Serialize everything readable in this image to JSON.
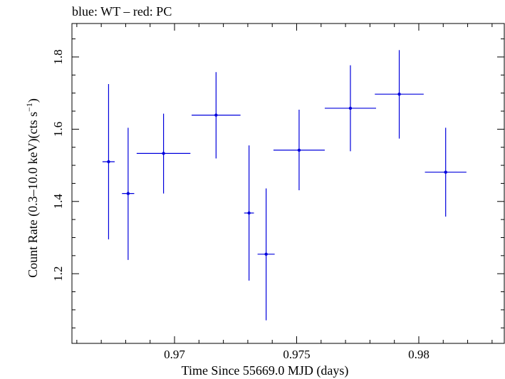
{
  "chart_data": {
    "type": "scatter",
    "title": "blue: WT – red: PC",
    "xlabel": "Time Since 55669.0 MJD (days)",
    "ylabel_main": "Count Rate (0.3–10.0 keV)(cts s",
    "ylabel_sup": "−1",
    "ylabel_end": ")",
    "xlim": [
      0.9658,
      0.9835
    ],
    "ylim": [
      1.0071,
      1.8926
    ],
    "x_ticks": [
      0.97,
      0.975,
      0.98
    ],
    "x_tick_labels": [
      "0.97",
      "0.975",
      "0.98"
    ],
    "y_ticks": [
      1.2,
      1.4,
      1.6,
      1.8
    ],
    "y_tick_labels": [
      "1.2",
      "1.4",
      "1.6",
      "1.8"
    ],
    "grid": false,
    "series": [
      {
        "name": "WT",
        "color": "#0000dd",
        "points": [
          {
            "x": 0.9673,
            "y": 1.51,
            "xerr": 0.00025,
            "ylo": 1.295,
            "yhi": 1.725
          },
          {
            "x": 0.9681,
            "y": 1.422,
            "xerr": 0.00025,
            "ylo": 1.238,
            "yhi": 1.604
          },
          {
            "x": 0.96955,
            "y": 1.533,
            "xerr": 0.0011,
            "ylo": 1.422,
            "yhi": 1.643
          },
          {
            "x": 0.9717,
            "y": 1.639,
            "xerr": 0.001,
            "ylo": 1.519,
            "yhi": 1.758
          },
          {
            "x": 0.97305,
            "y": 1.368,
            "xerr": 0.0002,
            "ylo": 1.181,
            "yhi": 1.555
          },
          {
            "x": 0.97375,
            "y": 1.254,
            "xerr": 0.00035,
            "ylo": 1.071,
            "yhi": 1.436
          },
          {
            "x": 0.9751,
            "y": 1.542,
            "xerr": 0.00105,
            "ylo": 1.431,
            "yhi": 1.654
          },
          {
            "x": 0.9772,
            "y": 1.658,
            "xerr": 0.00105,
            "ylo": 1.539,
            "yhi": 1.777
          },
          {
            "x": 0.9792,
            "y": 1.697,
            "xerr": 0.001,
            "ylo": 1.574,
            "yhi": 1.819
          },
          {
            "x": 0.9811,
            "y": 1.481,
            "xerr": 0.00085,
            "ylo": 1.358,
            "yhi": 1.604
          }
        ]
      }
    ]
  }
}
